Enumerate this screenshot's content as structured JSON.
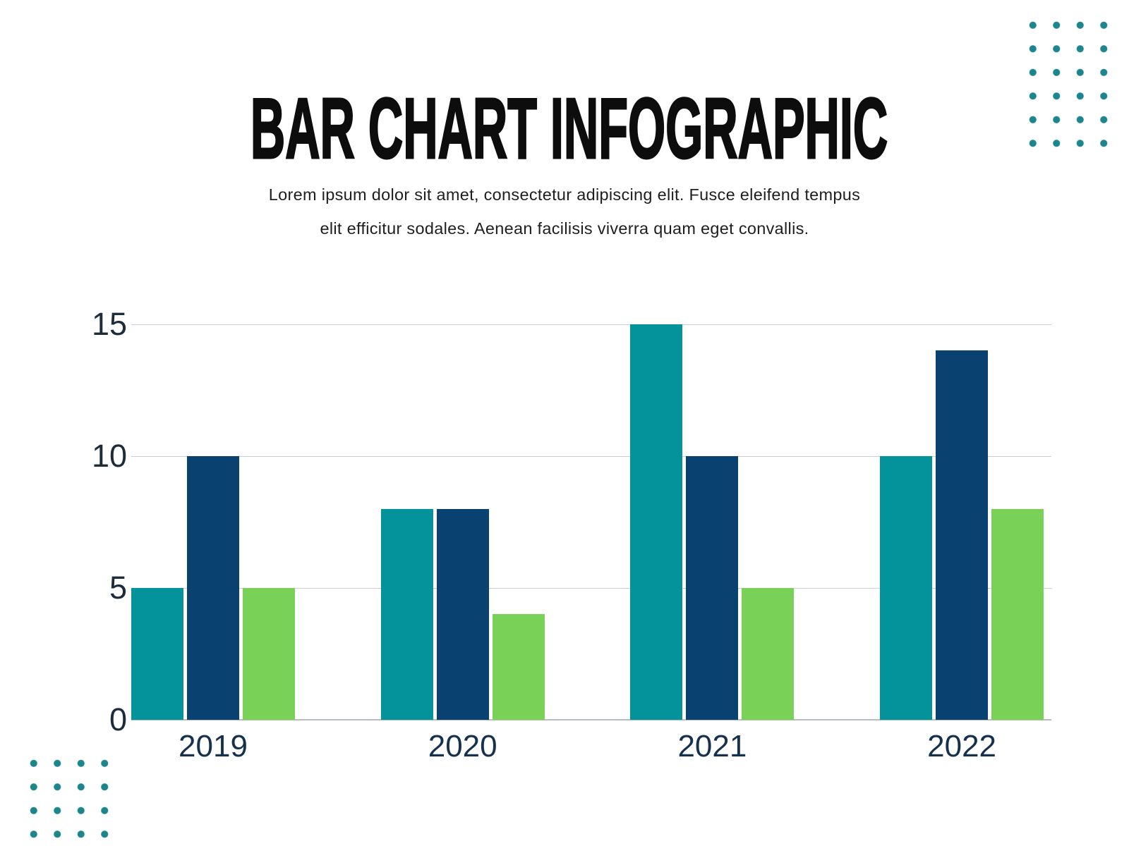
{
  "header": {
    "title": "BAR CHART INFOGRAPHIC",
    "subtitle_line1": "Lorem ipsum dolor sit amet, consectetur adipiscing elit. Fusce eleifend tempus",
    "subtitle_line2": "elit efficitur sodales. Aenean facilisis viverra quam eget convallis."
  },
  "chart_data": {
    "type": "bar",
    "title": "BAR CHART INFOGRAPHIC",
    "categories": [
      "2019",
      "2020",
      "2021",
      "2022"
    ],
    "series": [
      {
        "name": "teal-series",
        "color": "#04939a",
        "values": [
          5,
          8,
          15,
          10
        ]
      },
      {
        "name": "navy-series",
        "color": "#094170",
        "values": [
          10,
          8,
          10,
          14
        ]
      },
      {
        "name": "green-series",
        "color": "#79d257",
        "values": [
          5,
          4,
          5,
          8
        ]
      }
    ],
    "xlabel": "",
    "ylabel": "",
    "yticks": [
      0,
      5,
      10,
      15
    ],
    "ylim": [
      0,
      15
    ],
    "grid": true,
    "legend_position": "none",
    "gridline_color": "#cbcfd3",
    "axis_label_color": "#1d2c3b",
    "category_label_color": "#16314e"
  },
  "decor": {
    "dot_color": "#1d868d",
    "dot_grid_top_right": "4 columns x 6 rows",
    "dot_grid_bottom_left": "4 columns x 4 rows"
  }
}
